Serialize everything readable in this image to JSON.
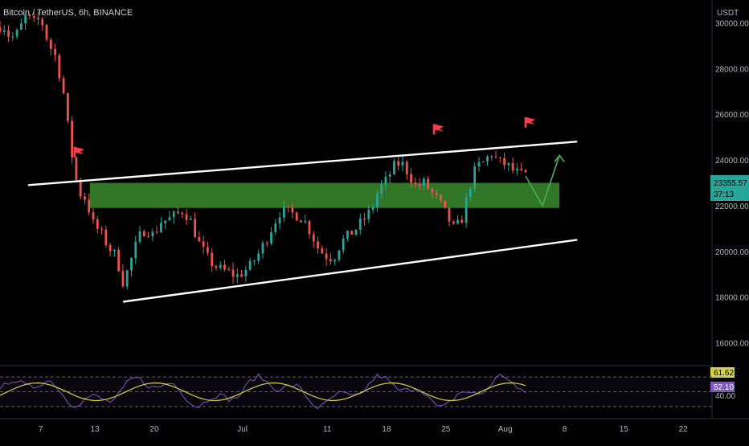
{
  "header": {
    "symbol_title": "Bitcoin / TetherUS, 6h, BINANCE",
    "currency": "USDT"
  },
  "colors": {
    "background": "#000000",
    "bull": "#26a69a",
    "bear": "#ef5350",
    "channel": "#ffffff",
    "zone": "#3a8a2e",
    "rsi_line": "#7e57c2",
    "rsi_ma": "#d4d43c",
    "projection": "#4caf50",
    "flag": "#ff3b4a",
    "price_badge": "#26a69a",
    "rsi_badge_ma": "#d4d43c",
    "rsi_badge": "#7e57c2"
  },
  "price_axis": {
    "labels": [
      "30000.00",
      "28000.00",
      "26000.00",
      "24000.00",
      "22000.00",
      "20000.00",
      "18000.00",
      "16000.00"
    ]
  },
  "price_badge": {
    "price": "23355.57",
    "countdown": "37:13"
  },
  "rsi": {
    "value_label": "52.10",
    "ma_label": "61.62",
    "lower_label": "40.00"
  },
  "time_axis": {
    "labels": [
      "7",
      "13",
      "20",
      "Jul",
      "11",
      "18",
      "25",
      "Aug",
      "8",
      "15",
      "22"
    ]
  },
  "chart_data": {
    "type": "candlestick",
    "title": "Bitcoin / TetherUS, 6h, BINANCE",
    "ylabel": "USDT",
    "ylim": [
      15000,
      31000
    ],
    "x_tick_labels": [
      "7",
      "13",
      "20",
      "Jul",
      "11",
      "18",
      "25",
      "Aug",
      "8",
      "15",
      "22"
    ],
    "price_path": [
      [
        0,
        29800
      ],
      [
        1,
        29900
      ],
      [
        2,
        29300
      ],
      [
        3,
        29600
      ],
      [
        4,
        30300
      ],
      [
        5,
        30000
      ],
      [
        6,
        30200
      ],
      [
        7,
        29100
      ],
      [
        8,
        28500
      ],
      [
        9,
        27000
      ],
      [
        10,
        24500
      ],
      [
        11,
        22600
      ],
      [
        12,
        22300
      ],
      [
        13,
        21200
      ],
      [
        14,
        20800
      ],
      [
        15,
        20200
      ],
      [
        16,
        19800
      ],
      [
        17,
        18600
      ],
      [
        18,
        19600
      ],
      [
        19,
        20600
      ],
      [
        20,
        21000
      ],
      [
        21,
        20700
      ],
      [
        22,
        21300
      ],
      [
        23,
        21400
      ],
      [
        24,
        21600
      ],
      [
        25,
        21800
      ],
      [
        26,
        21300
      ],
      [
        27,
        20400
      ],
      [
        28,
        19800
      ],
      [
        29,
        19400
      ],
      [
        30,
        19200
      ],
      [
        31,
        19100
      ],
      [
        32,
        18900
      ],
      [
        33,
        19100
      ],
      [
        34,
        19400
      ],
      [
        35,
        19900
      ],
      [
        36,
        20500
      ],
      [
        37,
        21200
      ],
      [
        38,
        21800
      ],
      [
        39,
        21700
      ],
      [
        40,
        21600
      ],
      [
        41,
        21400
      ],
      [
        42,
        20800
      ],
      [
        43,
        20100
      ],
      [
        44,
        19800
      ],
      [
        45,
        19700
      ],
      [
        46,
        20400
      ],
      [
        47,
        20700
      ],
      [
        48,
        21000
      ],
      [
        49,
        21400
      ],
      [
        50,
        21800
      ],
      [
        51,
        22700
      ],
      [
        52,
        23100
      ],
      [
        53,
        23700
      ],
      [
        54,
        23900
      ],
      [
        55,
        23400
      ],
      [
        56,
        22800
      ],
      [
        57,
        23000
      ],
      [
        58,
        22600
      ],
      [
        59,
        22200
      ],
      [
        60,
        21600
      ],
      [
        61,
        21000
      ],
      [
        62,
        21300
      ],
      [
        63,
        22700
      ],
      [
        64,
        23700
      ],
      [
        65,
        23900
      ],
      [
        66,
        24300
      ],
      [
        67,
        23900
      ],
      [
        68,
        23800
      ],
      [
        69,
        23500
      ],
      [
        70,
        23355
      ]
    ],
    "channel_upper": [
      [
        1.7,
        22900
      ],
      [
        34,
        24800
      ]
    ],
    "channel_lower": [
      [
        7.3,
        17800
      ],
      [
        34.0,
        20500
      ]
    ],
    "support_zone": [
      21900,
      23000
    ],
    "projection": [
      [
        31,
        23300
      ],
      [
        32,
        22000
      ],
      [
        33,
        24200
      ]
    ],
    "marked_highs": [
      [
        4.4,
        23800
      ],
      [
        25.6,
        24800
      ],
      [
        31.0,
        25100
      ]
    ],
    "rsi": {
      "levels": [
        70,
        50,
        30
      ],
      "last_value": 52.1,
      "ma_value": 61.62
    }
  }
}
